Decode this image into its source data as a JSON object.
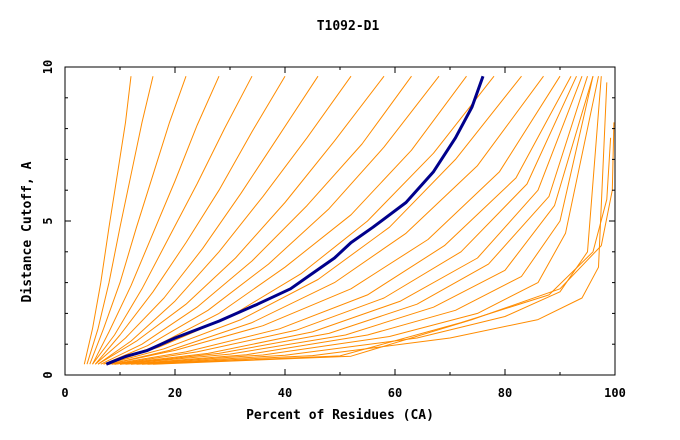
{
  "chart_data": {
    "type": "line",
    "title": "T1092-D1",
    "xlabel": "Percent of Residues (CA)",
    "ylabel": "Distance Cutoff, A",
    "xlim": [
      0,
      100
    ],
    "ylim": [
      0,
      10
    ],
    "xticks": [
      0,
      20,
      40,
      60,
      80,
      100
    ],
    "yticks": [
      0,
      5,
      10
    ],
    "grid": false,
    "legend": "none",
    "colors": {
      "models": "#ff8c00",
      "highlight": "#00008b"
    },
    "series": [
      {
        "x": [
          3.5,
          5,
          6.5,
          8,
          9.5,
          11,
          12
        ],
        "y": [
          0.35,
          1.5,
          3,
          4.8,
          6.5,
          8.2,
          9.7
        ]
      },
      {
        "x": [
          4,
          6,
          8,
          10,
          12,
          14,
          16
        ],
        "y": [
          0.35,
          1.5,
          3,
          4.8,
          6.5,
          8.2,
          9.7
        ]
      },
      {
        "x": [
          4.5,
          7,
          10,
          13,
          16,
          19,
          22
        ],
        "y": [
          0.35,
          1.5,
          3,
          4.8,
          6.5,
          8.2,
          9.7
        ]
      },
      {
        "x": [
          5,
          8,
          12,
          16,
          20,
          24,
          28
        ],
        "y": [
          0.35,
          1.4,
          2.9,
          4.6,
          6.3,
          8.1,
          9.7
        ]
      },
      {
        "x": [
          5,
          9,
          14,
          19,
          24,
          29,
          34
        ],
        "y": [
          0.35,
          1.3,
          2.8,
          4.5,
          6.2,
          8,
          9.7
        ]
      },
      {
        "x": [
          5.5,
          10,
          16,
          22,
          28,
          34,
          40
        ],
        "y": [
          0.35,
          1.3,
          2.7,
          4.3,
          6,
          7.9,
          9.7
        ]
      },
      {
        "x": [
          5.5,
          11,
          18,
          25,
          32,
          39,
          46
        ],
        "y": [
          0.35,
          1.2,
          2.5,
          4.1,
          5.9,
          7.8,
          9.7
        ]
      },
      {
        "x": [
          6,
          12,
          20,
          28,
          36,
          44,
          52
        ],
        "y": [
          0.35,
          1.1,
          2.4,
          4,
          5.8,
          7.7,
          9.7
        ]
      },
      {
        "x": [
          6,
          13,
          22,
          31,
          40,
          49,
          58
        ],
        "y": [
          0.35,
          1.1,
          2.3,
          3.8,
          5.6,
          7.6,
          9.7
        ]
      },
      {
        "x": [
          6.5,
          14,
          24,
          34,
          44,
          54,
          63
        ],
        "y": [
          0.35,
          1,
          2.2,
          3.7,
          5.5,
          7.5,
          9.7
        ]
      },
      {
        "x": [
          7,
          15,
          26,
          37,
          48,
          58,
          68
        ],
        "y": [
          0.35,
          0.95,
          2.1,
          3.6,
          5.4,
          7.4,
          9.7
        ]
      },
      {
        "x": [
          7,
          16,
          28,
          40,
          52,
          63,
          73
        ],
        "y": [
          0.35,
          0.9,
          2,
          3.5,
          5.2,
          7.3,
          9.7
        ]
      },
      {
        "x": [
          7.5,
          17,
          30,
          43,
          55,
          67,
          78
        ],
        "y": [
          0.35,
          0.9,
          1.9,
          3.3,
          5,
          7.2,
          9.7
        ]
      },
      {
        "x": [
          7.5,
          18,
          32,
          46,
          59,
          71,
          83
        ],
        "y": [
          0.35,
          0.85,
          1.8,
          3.1,
          4.8,
          7,
          9.7
        ]
      },
      {
        "x": [
          8,
          19,
          34,
          49,
          62,
          75,
          87
        ],
        "y": [
          0.35,
          0.8,
          1.7,
          3,
          4.6,
          6.8,
          9.7
        ]
      },
      {
        "x": [
          8,
          20,
          36,
          52,
          66,
          79,
          90
        ],
        "y": [
          0.35,
          0.8,
          1.6,
          2.8,
          4.4,
          6.6,
          9.7
        ]
      },
      {
        "x": [
          8.5,
          22,
          39,
          55,
          69,
          82,
          92
        ],
        "y": [
          0.35,
          0.75,
          1.5,
          2.6,
          4.2,
          6.4,
          9.7
        ]
      },
      {
        "x": [
          9,
          24,
          42,
          58,
          72,
          84,
          93
        ],
        "y": [
          0.35,
          0.75,
          1.45,
          2.5,
          4,
          6.2,
          9.7
        ]
      },
      {
        "x": [
          9,
          26,
          45,
          61,
          75,
          86,
          94
        ],
        "y": [
          0.35,
          0.7,
          1.4,
          2.4,
          3.8,
          6,
          9.7
        ]
      },
      {
        "x": [
          10,
          28,
          48,
          64,
          77,
          88,
          95
        ],
        "y": [
          0.35,
          0.7,
          1.35,
          2.3,
          3.6,
          5.8,
          9.7
        ]
      },
      {
        "x": [
          10,
          30,
          51,
          67,
          80,
          89,
          96
        ],
        "y": [
          0.35,
          0.68,
          1.3,
          2.2,
          3.4,
          5.5,
          9.7
        ]
      },
      {
        "x": [
          11,
          33,
          55,
          71,
          83,
          90,
          96
        ],
        "y": [
          0.35,
          0.66,
          1.3,
          2.1,
          3.2,
          5,
          9.7
        ]
      },
      {
        "x": [
          12,
          36,
          59,
          75,
          86,
          91,
          97
        ],
        "y": [
          0.35,
          0.65,
          1.25,
          2,
          3,
          4.6,
          9.7
        ]
      },
      {
        "x": [
          13,
          40,
          64,
          80,
          90,
          95,
          97.5
        ],
        "y": [
          0.35,
          0.64,
          1.2,
          1.9,
          2.7,
          4,
          9.7
        ]
      },
      {
        "x": [
          14,
          45,
          70,
          86,
          94,
          97,
          98.5
        ],
        "y": [
          0.35,
          0.63,
          1.2,
          1.8,
          2.5,
          3.5,
          9.5
        ]
      },
      {
        "x": [
          15,
          50,
          72,
          88,
          96,
          98.5,
          99.2
        ],
        "y": [
          0.35,
          0.62,
          1.7,
          2.6,
          4,
          5.7,
          7.7
        ]
      },
      {
        "x": [
          16,
          52,
          74,
          90,
          97.5,
          99.5,
          99.8
        ],
        "y": [
          0.35,
          0.61,
          1.8,
          2.8,
          4.2,
          6,
          8.2
        ]
      }
    ],
    "highlight": {
      "x": [
        7.5,
        11,
        15,
        20,
        28,
        35,
        41,
        45,
        49,
        52,
        56,
        62,
        67,
        71,
        74,
        76
      ],
      "y": [
        0.35,
        0.6,
        0.8,
        1.2,
        1.75,
        2.3,
        2.8,
        3.3,
        3.8,
        4.3,
        4.8,
        5.6,
        6.6,
        7.7,
        8.7,
        9.7
      ]
    }
  }
}
